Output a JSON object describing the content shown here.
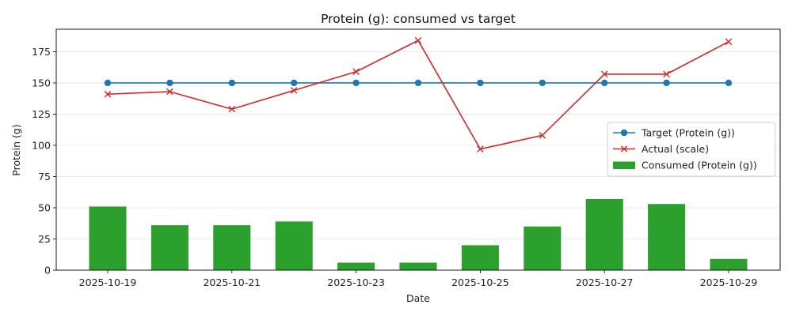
{
  "chart_data": {
    "type": "bar+line",
    "title": "Protein (g): consumed vs target",
    "xlabel": "Date",
    "ylabel": "Protein (g)",
    "ylim": [
      0,
      193
    ],
    "grid": "horizontal",
    "legend_position": "right",
    "dates": [
      "2025-10-19",
      "2025-10-20",
      "2025-10-21",
      "2025-10-22",
      "2025-10-23",
      "2025-10-24",
      "2025-10-25",
      "2025-10-26",
      "2025-10-27",
      "2025-10-28",
      "2025-10-29"
    ],
    "x_tick_labels": [
      "2025-10-19",
      "2025-10-21",
      "2025-10-23",
      "2025-10-25",
      "2025-10-27",
      "2025-10-29"
    ],
    "y_ticks": [
      0,
      25,
      50,
      75,
      100,
      125,
      150,
      175
    ],
    "series": [
      {
        "name": "Target (Protein (g))",
        "kind": "line",
        "marker": "circle",
        "color": "#1f77b4",
        "values": [
          150,
          150,
          150,
          150,
          150,
          150,
          150,
          150,
          150,
          150,
          150
        ]
      },
      {
        "name": "Actual (scale)",
        "kind": "line",
        "marker": "x",
        "color": "#d62728",
        "values": [
          141,
          143,
          129,
          144,
          159,
          184,
          97,
          108,
          157,
          157,
          183
        ]
      },
      {
        "name": "Consumed (Protein (g))",
        "kind": "bar",
        "color": "#2ca02c",
        "values": [
          51,
          36,
          36,
          39,
          6,
          6,
          20,
          35,
          57,
          53,
          9
        ]
      }
    ],
    "legend_order": [
      0,
      1,
      2
    ]
  }
}
